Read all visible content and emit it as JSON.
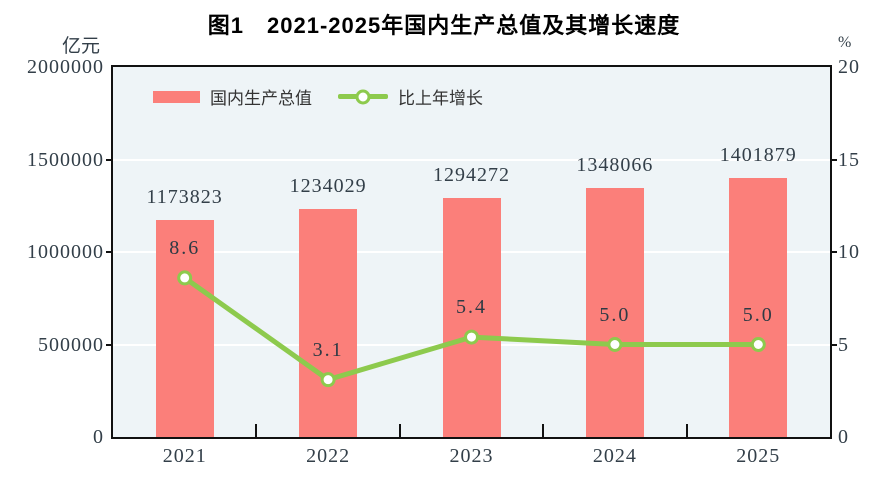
{
  "chart_data": {
    "type": "bar+line",
    "title": "图1　2021-2025年国内生产总值及其增长速度",
    "categories": [
      "2021",
      "2022",
      "2023",
      "2024",
      "2025"
    ],
    "series": [
      {
        "name": "国内生产总值",
        "type": "bar",
        "axis": "left",
        "values": [
          1173823,
          1234029,
          1294272,
          1348066,
          1401879
        ],
        "labels": [
          "1173823",
          "1234029",
          "1294272",
          "1348066",
          "1401879"
        ],
        "color": "#fb7f7a"
      },
      {
        "name": "比上年增长",
        "type": "line",
        "axis": "right",
        "values": [
          8.6,
          3.1,
          5.4,
          5.0,
          5.0
        ],
        "labels": [
          "8.6",
          "3.1",
          "5.4",
          "5.0",
          "5.0"
        ],
        "color": "#8dca4d",
        "marker": {
          "fill": "#ffffff",
          "stroke": "#8dca4d"
        }
      }
    ],
    "left_axis": {
      "unit": "亿元",
      "min": 0,
      "max": 2000000,
      "ticks": [
        0,
        500000,
        1000000,
        1500000,
        2000000
      ]
    },
    "right_axis": {
      "unit": "%",
      "min": 0,
      "max": 20,
      "ticks": [
        0,
        5,
        10,
        15,
        20
      ]
    },
    "legend": {
      "position": "top-left",
      "items": [
        "国内生产总值",
        "比上年增长"
      ]
    },
    "grid": true,
    "style": {
      "plot_bg": "#eef4f7",
      "grid_color": "#ffffff",
      "axis_color": "#111111",
      "label_color": "#333f49",
      "title_color": "#000000",
      "background": "#ffffff"
    }
  }
}
